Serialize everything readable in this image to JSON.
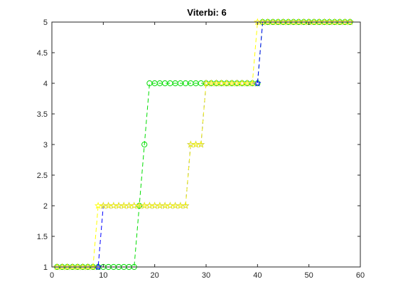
{
  "chart_data": {
    "type": "line",
    "title": "Viterbi: 6",
    "xlabel": "",
    "ylabel": "",
    "xlim": [
      0,
      60
    ],
    "ylim": [
      1,
      5
    ],
    "xticks": [
      0,
      10,
      20,
      30,
      40,
      50,
      60
    ],
    "yticks": [
      1,
      1.5,
      2,
      2.5,
      3,
      3.5,
      4,
      4.5,
      5
    ],
    "xtick_labels": [
      "0",
      "10",
      "20",
      "30",
      "40",
      "50",
      "60"
    ],
    "ytick_labels": [
      "1",
      "1.5",
      "2",
      "2.5",
      "3",
      "3.5",
      "4",
      "4.5",
      "5"
    ],
    "grid": false,
    "series": [
      {
        "color": "#00dd00",
        "linestyle": "dashed",
        "marker": "circle",
        "x": [
          1,
          2,
          3,
          4,
          5,
          6,
          7,
          8,
          9,
          10,
          11,
          12,
          13,
          14,
          15,
          16,
          17,
          18,
          19,
          20,
          21,
          22,
          23,
          24,
          25,
          26,
          27,
          28,
          29,
          30,
          31,
          32,
          33,
          34,
          35,
          36,
          37,
          38,
          39,
          40,
          41,
          42,
          43,
          44,
          45,
          46,
          47,
          48,
          49,
          50,
          51,
          52,
          53,
          54,
          55,
          56,
          57,
          58
        ],
        "y": [
          1,
          1,
          1,
          1,
          1,
          1,
          1,
          1,
          1,
          1,
          1,
          1,
          1,
          1,
          1,
          1,
          2,
          3,
          4,
          4,
          4,
          4,
          4,
          4,
          4,
          4,
          4,
          4,
          4,
          4,
          4,
          4,
          4,
          4,
          4,
          4,
          4,
          4,
          4,
          4,
          5,
          5,
          5,
          5,
          5,
          5,
          5,
          5,
          5,
          5,
          5,
          5,
          5,
          5,
          5,
          5,
          5,
          5
        ]
      },
      {
        "color": "#0000ff",
        "linestyle": "dashed",
        "marker": "star",
        "x": [
          1,
          2,
          3,
          4,
          5,
          6,
          7,
          8,
          9,
          10,
          11,
          12,
          13,
          14,
          15,
          16,
          17,
          18,
          19,
          20,
          21,
          22,
          23,
          24,
          25,
          26,
          27,
          28,
          29,
          30,
          31,
          32,
          33,
          34,
          35,
          36,
          37,
          38,
          39,
          40,
          41,
          42,
          43,
          44,
          45,
          46,
          47,
          48,
          49,
          50,
          51,
          52,
          53,
          54,
          55,
          56,
          57,
          58
        ],
        "y": [
          1,
          1,
          1,
          1,
          1,
          1,
          1,
          1,
          1,
          2,
          2,
          2,
          2,
          2,
          2,
          2,
          2,
          2,
          2,
          2,
          2,
          2,
          2,
          2,
          2,
          2,
          3,
          3,
          3,
          4,
          4,
          4,
          4,
          4,
          4,
          4,
          4,
          4,
          4,
          4,
          5,
          5,
          5,
          5,
          5,
          5,
          5,
          5,
          5,
          5,
          5,
          5,
          5,
          5,
          5,
          5,
          5,
          5
        ]
      },
      {
        "color": "#ffff00",
        "linestyle": "dashed",
        "marker": "star",
        "x": [
          1,
          2,
          3,
          4,
          5,
          6,
          7,
          8,
          9,
          10,
          11,
          12,
          13,
          14,
          15,
          16,
          17,
          18,
          19,
          20,
          21,
          22,
          23,
          24,
          25,
          26,
          27,
          28,
          29,
          30,
          31,
          32,
          33,
          34,
          35,
          36,
          37,
          38,
          39,
          40,
          41,
          42,
          43,
          44,
          45,
          46,
          47,
          48,
          49,
          50,
          51,
          52,
          53,
          54,
          55,
          56,
          57,
          58
        ],
        "y": [
          1,
          1,
          1,
          1,
          1,
          1,
          1,
          1,
          2,
          2,
          2,
          2,
          2,
          2,
          2,
          2,
          2,
          2,
          2,
          2,
          2,
          2,
          2,
          2,
          2,
          2,
          3,
          3,
          3,
          4,
          4,
          4,
          4,
          4,
          4,
          4,
          4,
          4,
          4,
          5,
          5,
          5,
          5,
          5,
          5,
          5,
          5,
          5,
          5,
          5,
          5,
          5,
          5,
          5,
          5,
          5,
          5,
          5
        ]
      }
    ]
  }
}
